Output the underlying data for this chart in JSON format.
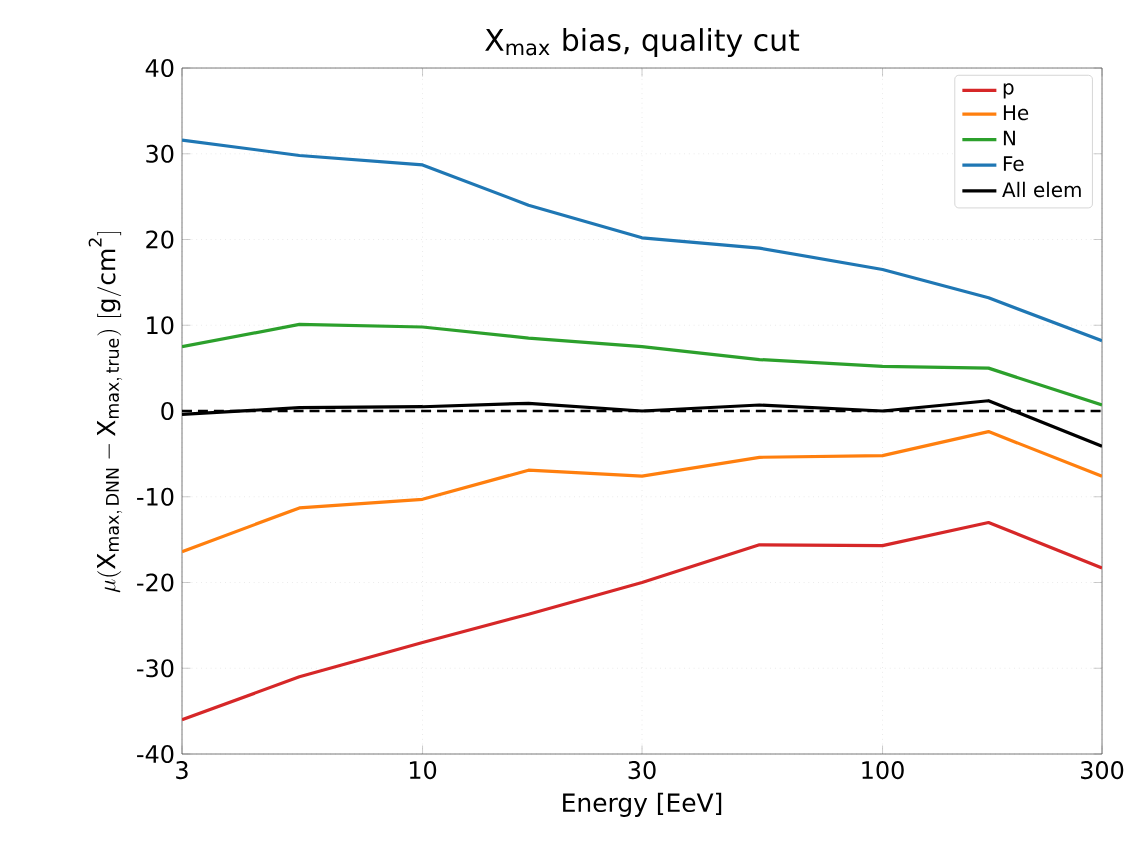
{
  "chart_data": {
    "type": "line",
    "title": "X$_{max}$ bias, quality cut",
    "xlabel": "Energy [EeV]",
    "ylabel": "\\mu(\\mathrm{X}_{\\mathrm{max,\\,DNN}} - \\mathrm{X}_{\\mathrm{max,\\,true}})\\ [\\mathrm{g/cm^{2}}]",
    "x": [
      3,
      5.4,
      10,
      17,
      30,
      54,
      100,
      170,
      300
    ],
    "series": [
      {
        "name": "p",
        "color": "#d62728",
        "values": [
          -36,
          -31,
          -27,
          -23.7,
          -20,
          -15.6,
          -15.7,
          -13,
          -18.3
        ]
      },
      {
        "name": "He",
        "color": "#ff7f0e",
        "values": [
          -16.4,
          -11.3,
          -10.3,
          -6.9,
          -7.6,
          -5.4,
          -5.2,
          -2.4,
          -7.6
        ]
      },
      {
        "name": "N",
        "color": "#2ca02c",
        "values": [
          7.5,
          10.1,
          9.8,
          8.5,
          7.5,
          6,
          5.2,
          5,
          0.7
        ]
      },
      {
        "name": "Fe",
        "color": "#1f77b4",
        "values": [
          31.6,
          29.8,
          28.7,
          24,
          20.2,
          19,
          16.5,
          13.2,
          8.2
        ]
      },
      {
        "name": "All elem",
        "color": "#000000",
        "values": [
          -0.4,
          0.4,
          0.5,
          0.9,
          0,
          0.7,
          0,
          1.2,
          -4.1
        ]
      }
    ],
    "log": "x",
    "xlim": [
      3,
      300
    ],
    "xticks": [
      3,
      10,
      30,
      100,
      300
    ],
    "ylim": [
      -40,
      40
    ],
    "yticks": [
      -40,
      -30,
      -20,
      -10,
      0,
      10,
      20,
      30,
      40
    ],
    "ref_lines": [
      {
        "axis": "y",
        "value": 0,
        "color": "#000000",
        "line_style": "dashed"
      }
    ],
    "grid": true,
    "legend": "top right",
    "line_style": "solid"
  }
}
